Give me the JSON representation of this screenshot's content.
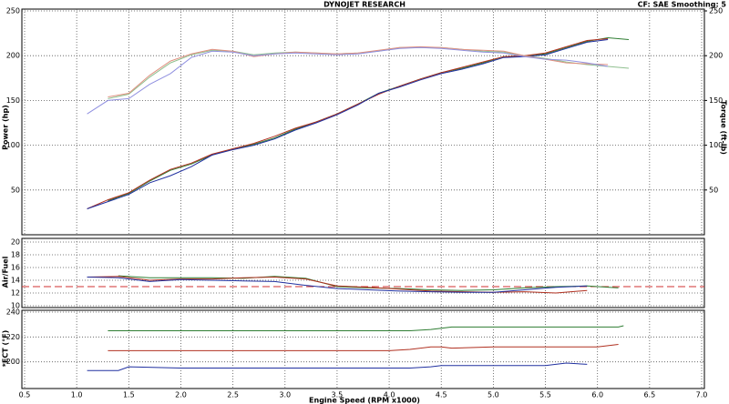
{
  "chart_data": [
    {
      "type": "line",
      "title": "DYNOJET RESEARCH",
      "subtitle": "CF: SAE  Smoothing: 5",
      "ylabel": "Power (hp)",
      "y2label": "Torque (ft-lb)",
      "x": [
        1.1,
        1.3,
        1.5,
        1.7,
        1.9,
        2.1,
        2.3,
        2.5,
        2.7,
        2.9,
        3.1,
        3.3,
        3.5,
        3.7,
        3.9,
        4.1,
        4.3,
        4.5,
        4.7,
        4.9,
        5.1,
        5.3,
        5.5,
        5.7,
        5.9,
        6.1,
        6.3
      ],
      "ylim": [
        0,
        250
      ],
      "yticks": [
        50,
        100,
        150,
        200,
        250
      ],
      "y2lim": [
        0,
        250
      ],
      "y2ticks": [
        50,
        100,
        150,
        200,
        250
      ],
      "grid": true,
      "series": [
        {
          "color": "#2e7d32",
          "values": [
            null,
            38,
            46,
            60,
            72,
            79,
            89,
            96,
            101,
            108,
            118,
            126,
            135,
            146,
            158,
            166,
            174,
            181,
            186,
            192,
            199,
            200,
            202,
            209,
            216,
            220,
            218
          ]
        },
        {
          "color": "#b03020",
          "values": [
            29,
            39,
            47,
            61,
            73,
            80,
            90,
            96,
            102,
            110,
            119,
            126,
            135,
            146,
            157,
            166,
            174,
            181,
            187,
            193,
            199,
            200,
            203,
            210,
            217,
            219,
            null
          ]
        },
        {
          "color": "#2030a0",
          "values": [
            29,
            37,
            45,
            58,
            66,
            76,
            89,
            95,
            100,
            107,
            117,
            125,
            134,
            145,
            158,
            165,
            173,
            180,
            185,
            191,
            198,
            199,
            201,
            208,
            215,
            218,
            null
          ]
        },
        {
          "color": "#8fbf8f",
          "axis": "y2",
          "values": [
            null,
            152,
            157,
            176,
            192,
            201,
            206,
            205,
            201,
            203,
            204,
            203,
            202,
            203,
            205,
            209,
            209,
            209,
            207,
            205,
            204,
            200,
            197,
            193,
            190,
            188,
            186
          ]
        },
        {
          "color": "#e09080",
          "axis": "y2",
          "values": [
            null,
            154,
            158,
            178,
            194,
            202,
            207,
            205,
            199,
            202,
            204,
            203,
            202,
            203,
            206,
            209,
            210,
            209,
            207,
            206,
            205,
            200,
            196,
            192,
            191,
            190,
            null
          ]
        },
        {
          "color": "#9090e0",
          "axis": "y2",
          "values": [
            135,
            150,
            152,
            168,
            180,
            198,
            205,
            204,
            200,
            202,
            203,
            202,
            201,
            202,
            205,
            208,
            209,
            208,
            206,
            204,
            203,
            199,
            196,
            195,
            192,
            188,
            null
          ]
        }
      ]
    },
    {
      "type": "line",
      "ylabel": "Air/Fuel",
      "x": [
        1.1,
        1.4,
        1.7,
        2.0,
        2.3,
        2.6,
        2.9,
        3.2,
        3.5,
        3.8,
        4.1,
        4.4,
        4.7,
        5.0,
        5.3,
        5.6,
        5.9,
        6.2
      ],
      "ylim": [
        10,
        20
      ],
      "yticks": [
        10,
        12,
        14,
        16,
        18,
        20
      ],
      "grid": true,
      "reference_line": {
        "value": 13,
        "color": "#d03030"
      },
      "series": [
        {
          "color": "#2e7d32",
          "values": [
            null,
            14.7,
            14.4,
            14.4,
            14.4,
            14.3,
            14.6,
            14.3,
            13.0,
            12.8,
            12.7,
            12.5,
            12.4,
            12.5,
            12.8,
            13.0,
            13.1,
            12.8
          ]
        },
        {
          "color": "#b03020",
          "values": [
            14.5,
            14.6,
            14.0,
            14.2,
            14.2,
            14.4,
            14.5,
            14.2,
            13.1,
            12.9,
            12.6,
            12.3,
            12.2,
            12.1,
            12.2,
            12.0,
            12.4,
            null
          ]
        },
        {
          "color": "#2030a0",
          "values": [
            14.5,
            14.4,
            13.8,
            14.1,
            14.0,
            13.9,
            13.8,
            13.2,
            12.7,
            12.5,
            12.3,
            12.2,
            12.1,
            12.1,
            12.5,
            12.9,
            13.1,
            null
          ]
        }
      ]
    },
    {
      "type": "line",
      "ylabel": "*ECT (°F)",
      "xlabel": "Engine Speed (RPM x1000)",
      "x": [
        1.1,
        1.3,
        1.4,
        1.5,
        2.0,
        3.0,
        4.0,
        4.2,
        4.4,
        4.5,
        4.6,
        5.0,
        5.5,
        5.7,
        5.9,
        6.0,
        6.2,
        6.25
      ],
      "xlim": [
        0.5,
        7
      ],
      "xticks": [
        0.5,
        {
          "value": 1,
          "label": "1.0"
        },
        1.5,
        {
          "value": 2,
          "label": "2.0"
        },
        2.5,
        {
          "value": 3,
          "label": "3.0"
        },
        3.5,
        {
          "value": 4,
          "label": "4.0"
        },
        4.5,
        {
          "value": 5,
          "label": "5.0"
        },
        5.5,
        {
          "value": 6,
          "label": "6.0"
        },
        6.5,
        {
          "value": 7,
          "label": "7.0"
        }
      ],
      "ylim": [
        180,
        240
      ],
      "yticks": [
        200,
        220,
        240
      ],
      "grid": true,
      "series": [
        {
          "color": "#2e7d32",
          "values": [
            null,
            225,
            225,
            225,
            225,
            225,
            225,
            225,
            226,
            227,
            228,
            228,
            228,
            228,
            228,
            228,
            228,
            229
          ]
        },
        {
          "color": "#b03020",
          "values": [
            null,
            209,
            209,
            209,
            209,
            209,
            209,
            210,
            212,
            212,
            211,
            212,
            212,
            212,
            212,
            212,
            214,
            null
          ]
        },
        {
          "color": "#2030a0",
          "values": [
            193,
            193,
            193,
            196,
            195,
            195,
            195,
            195,
            196,
            197,
            197,
            197,
            197,
            199,
            198,
            null,
            null,
            null
          ]
        }
      ]
    }
  ]
}
